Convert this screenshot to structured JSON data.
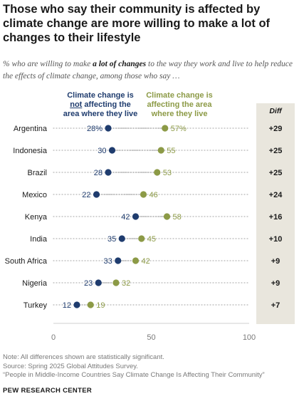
{
  "title": "Those who say their community is affected by climate change are more willing to make a lot of changes to their lifestyle",
  "subtitle": {
    "before": "% who are willing to make ",
    "emphasis": "a lot of changes",
    "after": " to the way they work and live to help reduce the effects of climate change, among those who say …"
  },
  "legend": {
    "not_line1": "Climate change is",
    "not_underlined": "not",
    "not_line2_rest": " affecting the",
    "not_line3": "area where they live",
    "affected": "Climate change is affecting the area where they live"
  },
  "diff_header": "Diff",
  "chart_data": {
    "type": "dot",
    "categories": [
      "Argentina",
      "Indonesia",
      "Brazil",
      "Mexico",
      "Kenya",
      "India",
      "South Africa",
      "Nigeria",
      "Turkey"
    ],
    "series": [
      {
        "name": "Climate change is not affecting the area where they live",
        "values": [
          28,
          30,
          28,
          22,
          42,
          35,
          33,
          23,
          12
        ]
      },
      {
        "name": "Climate change is affecting the area where they live",
        "values": [
          57,
          55,
          53,
          46,
          58,
          45,
          42,
          32,
          19
        ]
      }
    ],
    "value_labels": {
      "not": [
        "28%",
        "30",
        "28",
        "22",
        "42",
        "35",
        "33",
        "23",
        "12"
      ],
      "affected": [
        "57%",
        "55",
        "53",
        "46",
        "58",
        "45",
        "42",
        "32",
        "19"
      ]
    },
    "diff": [
      "+29",
      "+25",
      "+25",
      "+24",
      "+16",
      "+10",
      "+9",
      "+9",
      "+7"
    ],
    "xlim": [
      0,
      100
    ],
    "xticks": [
      0,
      50,
      100
    ],
    "colors": {
      "not": "#1f3c6e",
      "affected": "#8c9a46",
      "dots": "#b5b5b5",
      "axis": "#cfcfcf",
      "diff_bg": "#e9e6dd"
    }
  },
  "note": "Note: All differences shown are statistically significant.",
  "source": "Source: Spring 2025 Global Attitudes Survey.",
  "report": "“People in Middle-Income Countries Say Climate Change Is Affecting Their Community”",
  "brand": "PEW RESEARCH CENTER"
}
